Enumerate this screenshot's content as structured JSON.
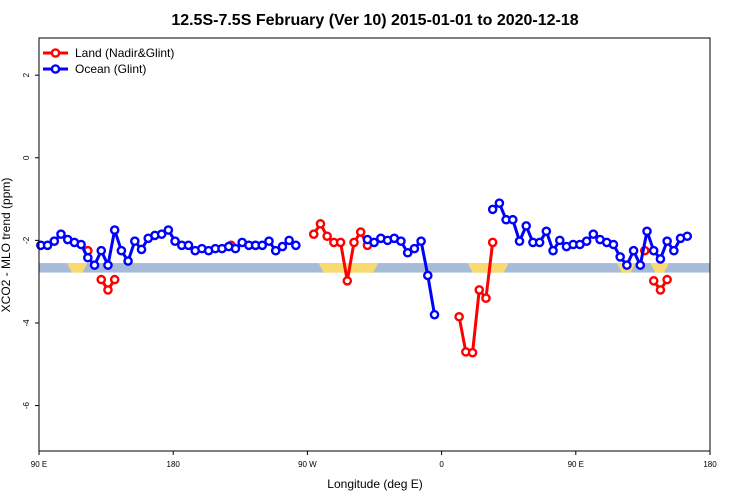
{
  "chart_data": {
    "type": "line",
    "title": "12.5S-7.5S February (Ver 10)   2015-01-01 to 2020-12-18",
    "xlabel": "Longitude (deg E)",
    "ylabel": "XCO2 - MLO trend (ppm)",
    "xlim": [
      90,
      450
    ],
    "ylim": [
      -7.1,
      2.9
    ],
    "x_ticks": [
      {
        "value": 90,
        "label": "90 E"
      },
      {
        "value": 162,
        "label": "180"
      },
      {
        "value": 234,
        "label": "90 W"
      },
      {
        "value": 306,
        "label": "0"
      },
      {
        "value": 378,
        "label": "90 E"
      },
      {
        "value": 450,
        "label": "180"
      }
    ],
    "y_ticks": [
      {
        "value": 2,
        "label": "2"
      },
      {
        "value": 0,
        "label": "0"
      },
      {
        "value": -2,
        "label": "-2"
      },
      {
        "value": -4,
        "label": "-4"
      },
      {
        "value": -6,
        "label": "-6"
      }
    ],
    "legend": {
      "placement": "top-left"
    },
    "land_band": {
      "y_range": [
        -2.78,
        -2.55
      ],
      "ocean_color": "#a5bbd8",
      "land_color": "#f9da6e",
      "land_x_ranges": [
        [
          105,
          116
        ],
        [
          240,
          272
        ],
        [
          320,
          342
        ],
        [
          400,
          410
        ],
        [
          418,
          428
        ]
      ]
    },
    "series": [
      {
        "name": "Land (Nadir&Glint)",
        "color": "#ff0000",
        "segments": [
          [
            [
              116.2,
              -2.25
            ]
          ],
          [
            [
              123.4,
              -2.95
            ],
            [
              127.0,
              -3.2
            ],
            [
              130.6,
              -2.95
            ]
          ],
          [
            [
              193.0,
              -2.12
            ]
          ],
          [
            [
              237.4,
              -1.85
            ],
            [
              241.0,
              -1.6
            ],
            [
              244.6,
              -1.9
            ],
            [
              248.2,
              -2.05
            ],
            [
              251.8,
              -2.05
            ],
            [
              255.4,
              -2.98
            ],
            [
              259.0,
              -2.05
            ],
            [
              262.6,
              -1.8
            ],
            [
              266.2,
              -2.12
            ]
          ],
          [
            [
              315.4,
              -3.85
            ],
            [
              319.0,
              -4.7
            ],
            [
              322.6,
              -4.72
            ],
            [
              326.2,
              -3.2
            ],
            [
              329.8,
              -3.4
            ],
            [
              333.4,
              -2.05
            ]
          ],
          [
            [
              415.0,
              -2.25
            ]
          ],
          [
            [
              419.8,
              -2.98
            ],
            [
              423.4,
              -3.2
            ],
            [
              427.0,
              -2.95
            ]
          ]
        ]
      },
      {
        "name": "Ocean (Glint)",
        "color": "#0000ff",
        "segments": [
          [
            [
              91.0,
              -2.12
            ],
            [
              94.6,
              -2.12
            ],
            [
              98.2,
              -2.02
            ],
            [
              101.8,
              -1.85
            ],
            [
              105.4,
              -1.98
            ],
            [
              109.0,
              -2.05
            ],
            [
              112.6,
              -2.1
            ],
            [
              116.2,
              -2.42
            ],
            [
              119.8,
              -2.6
            ],
            [
              123.4,
              -2.25
            ],
            [
              127.0,
              -2.6
            ],
            [
              130.6,
              -1.75
            ],
            [
              134.2,
              -2.25
            ],
            [
              137.8,
              -2.5
            ],
            [
              141.4,
              -2.02
            ],
            [
              145.0,
              -2.22
            ],
            [
              148.6,
              -1.95
            ],
            [
              152.2,
              -1.88
            ],
            [
              155.8,
              -1.85
            ],
            [
              159.4,
              -1.75
            ],
            [
              163.0,
              -2.02
            ],
            [
              166.6,
              -2.12
            ],
            [
              170.2,
              -2.12
            ],
            [
              173.8,
              -2.25
            ],
            [
              177.4,
              -2.2
            ],
            [
              181.0,
              -2.25
            ],
            [
              184.6,
              -2.2
            ],
            [
              188.2,
              -2.2
            ],
            [
              191.8,
              -2.15
            ],
            [
              195.4,
              -2.2
            ],
            [
              199.0,
              -2.05
            ],
            [
              202.6,
              -2.12
            ],
            [
              206.2,
              -2.12
            ],
            [
              209.8,
              -2.12
            ],
            [
              213.4,
              -2.02
            ],
            [
              217.0,
              -2.25
            ],
            [
              220.6,
              -2.15
            ],
            [
              224.2,
              -2.0
            ],
            [
              227.8,
              -2.12
            ]
          ],
          [
            [
              266.2,
              -1.98
            ],
            [
              269.8,
              -2.05
            ],
            [
              273.4,
              -1.95
            ],
            [
              277.0,
              -2.0
            ],
            [
              280.6,
              -1.95
            ],
            [
              284.2,
              -2.02
            ],
            [
              287.8,
              -2.3
            ],
            [
              291.4,
              -2.2
            ],
            [
              295.0,
              -2.02
            ],
            [
              298.6,
              -2.85
            ],
            [
              302.2,
              -3.8
            ]
          ],
          [
            [
              333.4,
              -1.25
            ],
            [
              337.0,
              -1.1
            ],
            [
              340.6,
              -1.5
            ],
            [
              344.2,
              -1.5
            ],
            [
              347.8,
              -2.02
            ],
            [
              351.4,
              -1.65
            ],
            [
              355.0,
              -2.05
            ],
            [
              358.6,
              -2.05
            ],
            [
              362.2,
              -1.78
            ],
            [
              365.8,
              -2.25
            ],
            [
              369.4,
              -2.0
            ],
            [
              373.0,
              -2.15
            ],
            [
              376.6,
              -2.1
            ],
            [
              380.2,
              -2.1
            ],
            [
              383.8,
              -2.02
            ],
            [
              387.4,
              -1.85
            ],
            [
              391.0,
              -1.98
            ],
            [
              394.6,
              -2.05
            ],
            [
              398.2,
              -2.1
            ],
            [
              401.8,
              -2.4
            ],
            [
              405.4,
              -2.6
            ],
            [
              409.0,
              -2.25
            ],
            [
              412.6,
              -2.6
            ],
            [
              416.2,
              -1.78
            ],
            [
              419.8,
              -2.25
            ],
            [
              423.4,
              -2.45
            ],
            [
              427.0,
              -2.02
            ],
            [
              430.6,
              -2.25
            ],
            [
              434.2,
              -1.95
            ],
            [
              437.8,
              -1.9
            ]
          ]
        ]
      }
    ]
  }
}
